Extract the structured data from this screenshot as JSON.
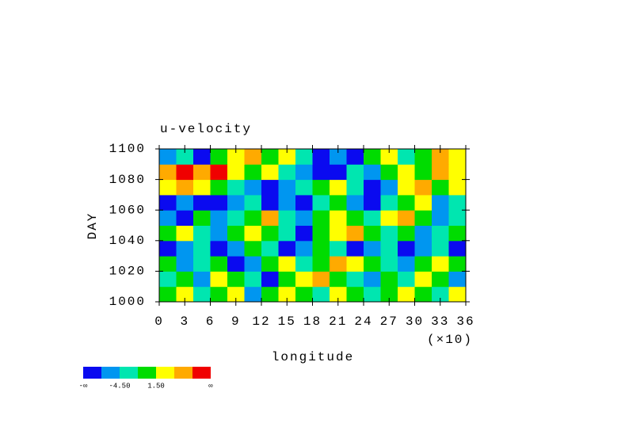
{
  "chart_data": {
    "type": "heatmap",
    "title": "u-velocity",
    "x_label": "longitude",
    "y_label": "DAY",
    "xtick_multiplier": "(×10)",
    "xlim": [
      0,
      360
    ],
    "ylim": [
      1000,
      1100
    ],
    "xticks": [
      0,
      {
        "value": 30,
        "label": "3"
      },
      {
        "value": 60,
        "label": "6"
      },
      {
        "value": 90,
        "label": "9"
      },
      {
        "value": 120,
        "label": "12"
      },
      {
        "value": 150,
        "label": "15"
      },
      {
        "value": 180,
        "label": "18"
      },
      {
        "value": 210,
        "label": "21"
      },
      {
        "value": 240,
        "label": "24"
      },
      {
        "value": 270,
        "label": "27"
      },
      {
        "value": 300,
        "label": "30"
      },
      {
        "value": 330,
        "label": "33"
      },
      {
        "value": 360,
        "label": "36"
      }
    ],
    "yticks": [
      1000,
      1020,
      1040,
      1060,
      1080,
      1100
    ],
    "x": [
      10,
      30,
      50,
      70,
      90,
      110,
      130,
      150,
      170,
      190,
      210,
      230,
      250,
      270,
      290,
      310,
      330,
      350
    ],
    "y": [
      1005,
      1015,
      1025,
      1035,
      1045,
      1055,
      1065,
      1075,
      1085,
      1095
    ],
    "z": [
      [
        0,
        3,
        -3,
        0,
        3,
        -6,
        0,
        3,
        0,
        -3,
        3,
        0,
        -3,
        0,
        3,
        0,
        -3,
        3
      ],
      [
        -3,
        0,
        -6,
        3,
        0,
        -3,
        -9,
        0,
        3,
        6,
        0,
        -3,
        -6,
        0,
        -3,
        3,
        0,
        -6
      ],
      [
        0,
        -6,
        -3,
        0,
        -9,
        -6,
        0,
        3,
        -3,
        0,
        6,
        3,
        0,
        -3,
        -6,
        0,
        3,
        0
      ],
      [
        -9,
        -6,
        -3,
        -9,
        -6,
        0,
        -3,
        -9,
        -6,
        0,
        -3,
        -9,
        -6,
        -3,
        -9,
        -6,
        -3,
        -9
      ],
      [
        0,
        3,
        -3,
        -6,
        0,
        3,
        0,
        -3,
        -9,
        0,
        3,
        6,
        0,
        -3,
        0,
        -6,
        -3,
        0
      ],
      [
        -6,
        -9,
        0,
        -6,
        -3,
        0,
        6,
        -3,
        -6,
        0,
        3,
        0,
        -3,
        3,
        6,
        0,
        -6,
        -3
      ],
      [
        -9,
        -6,
        -9,
        -9,
        -6,
        -3,
        -9,
        -6,
        -9,
        -3,
        0,
        -6,
        -9,
        -3,
        0,
        3,
        -6,
        -3
      ],
      [
        3,
        6,
        3,
        0,
        -3,
        -6,
        -9,
        -6,
        -3,
        0,
        3,
        -3,
        -9,
        -6,
        3,
        6,
        0,
        3
      ],
      [
        6,
        9,
        6,
        9,
        3,
        0,
        3,
        -3,
        -6,
        -9,
        -9,
        -3,
        -6,
        0,
        3,
        0,
        6,
        3
      ],
      [
        -6,
        -3,
        -9,
        0,
        3,
        6,
        0,
        3,
        -3,
        -9,
        -6,
        -9,
        0,
        3,
        -3,
        0,
        6,
        3
      ]
    ],
    "levels": [
      -7.5,
      -4.5,
      -1.5,
      1.5,
      4.5,
      7.5
    ],
    "colors": [
      "#0a0af0",
      "#0096f0",
      "#00e6b0",
      "#00dc00",
      "#ffff00",
      "#ffaa00",
      "#f00000"
    ],
    "colorbar_ends": [
      "-∞",
      "∞"
    ],
    "colorbar_ticks": [
      {
        "value": -4.5,
        "label": "-4.50"
      },
      {
        "value": 1.5,
        "label": "1.50"
      }
    ]
  }
}
